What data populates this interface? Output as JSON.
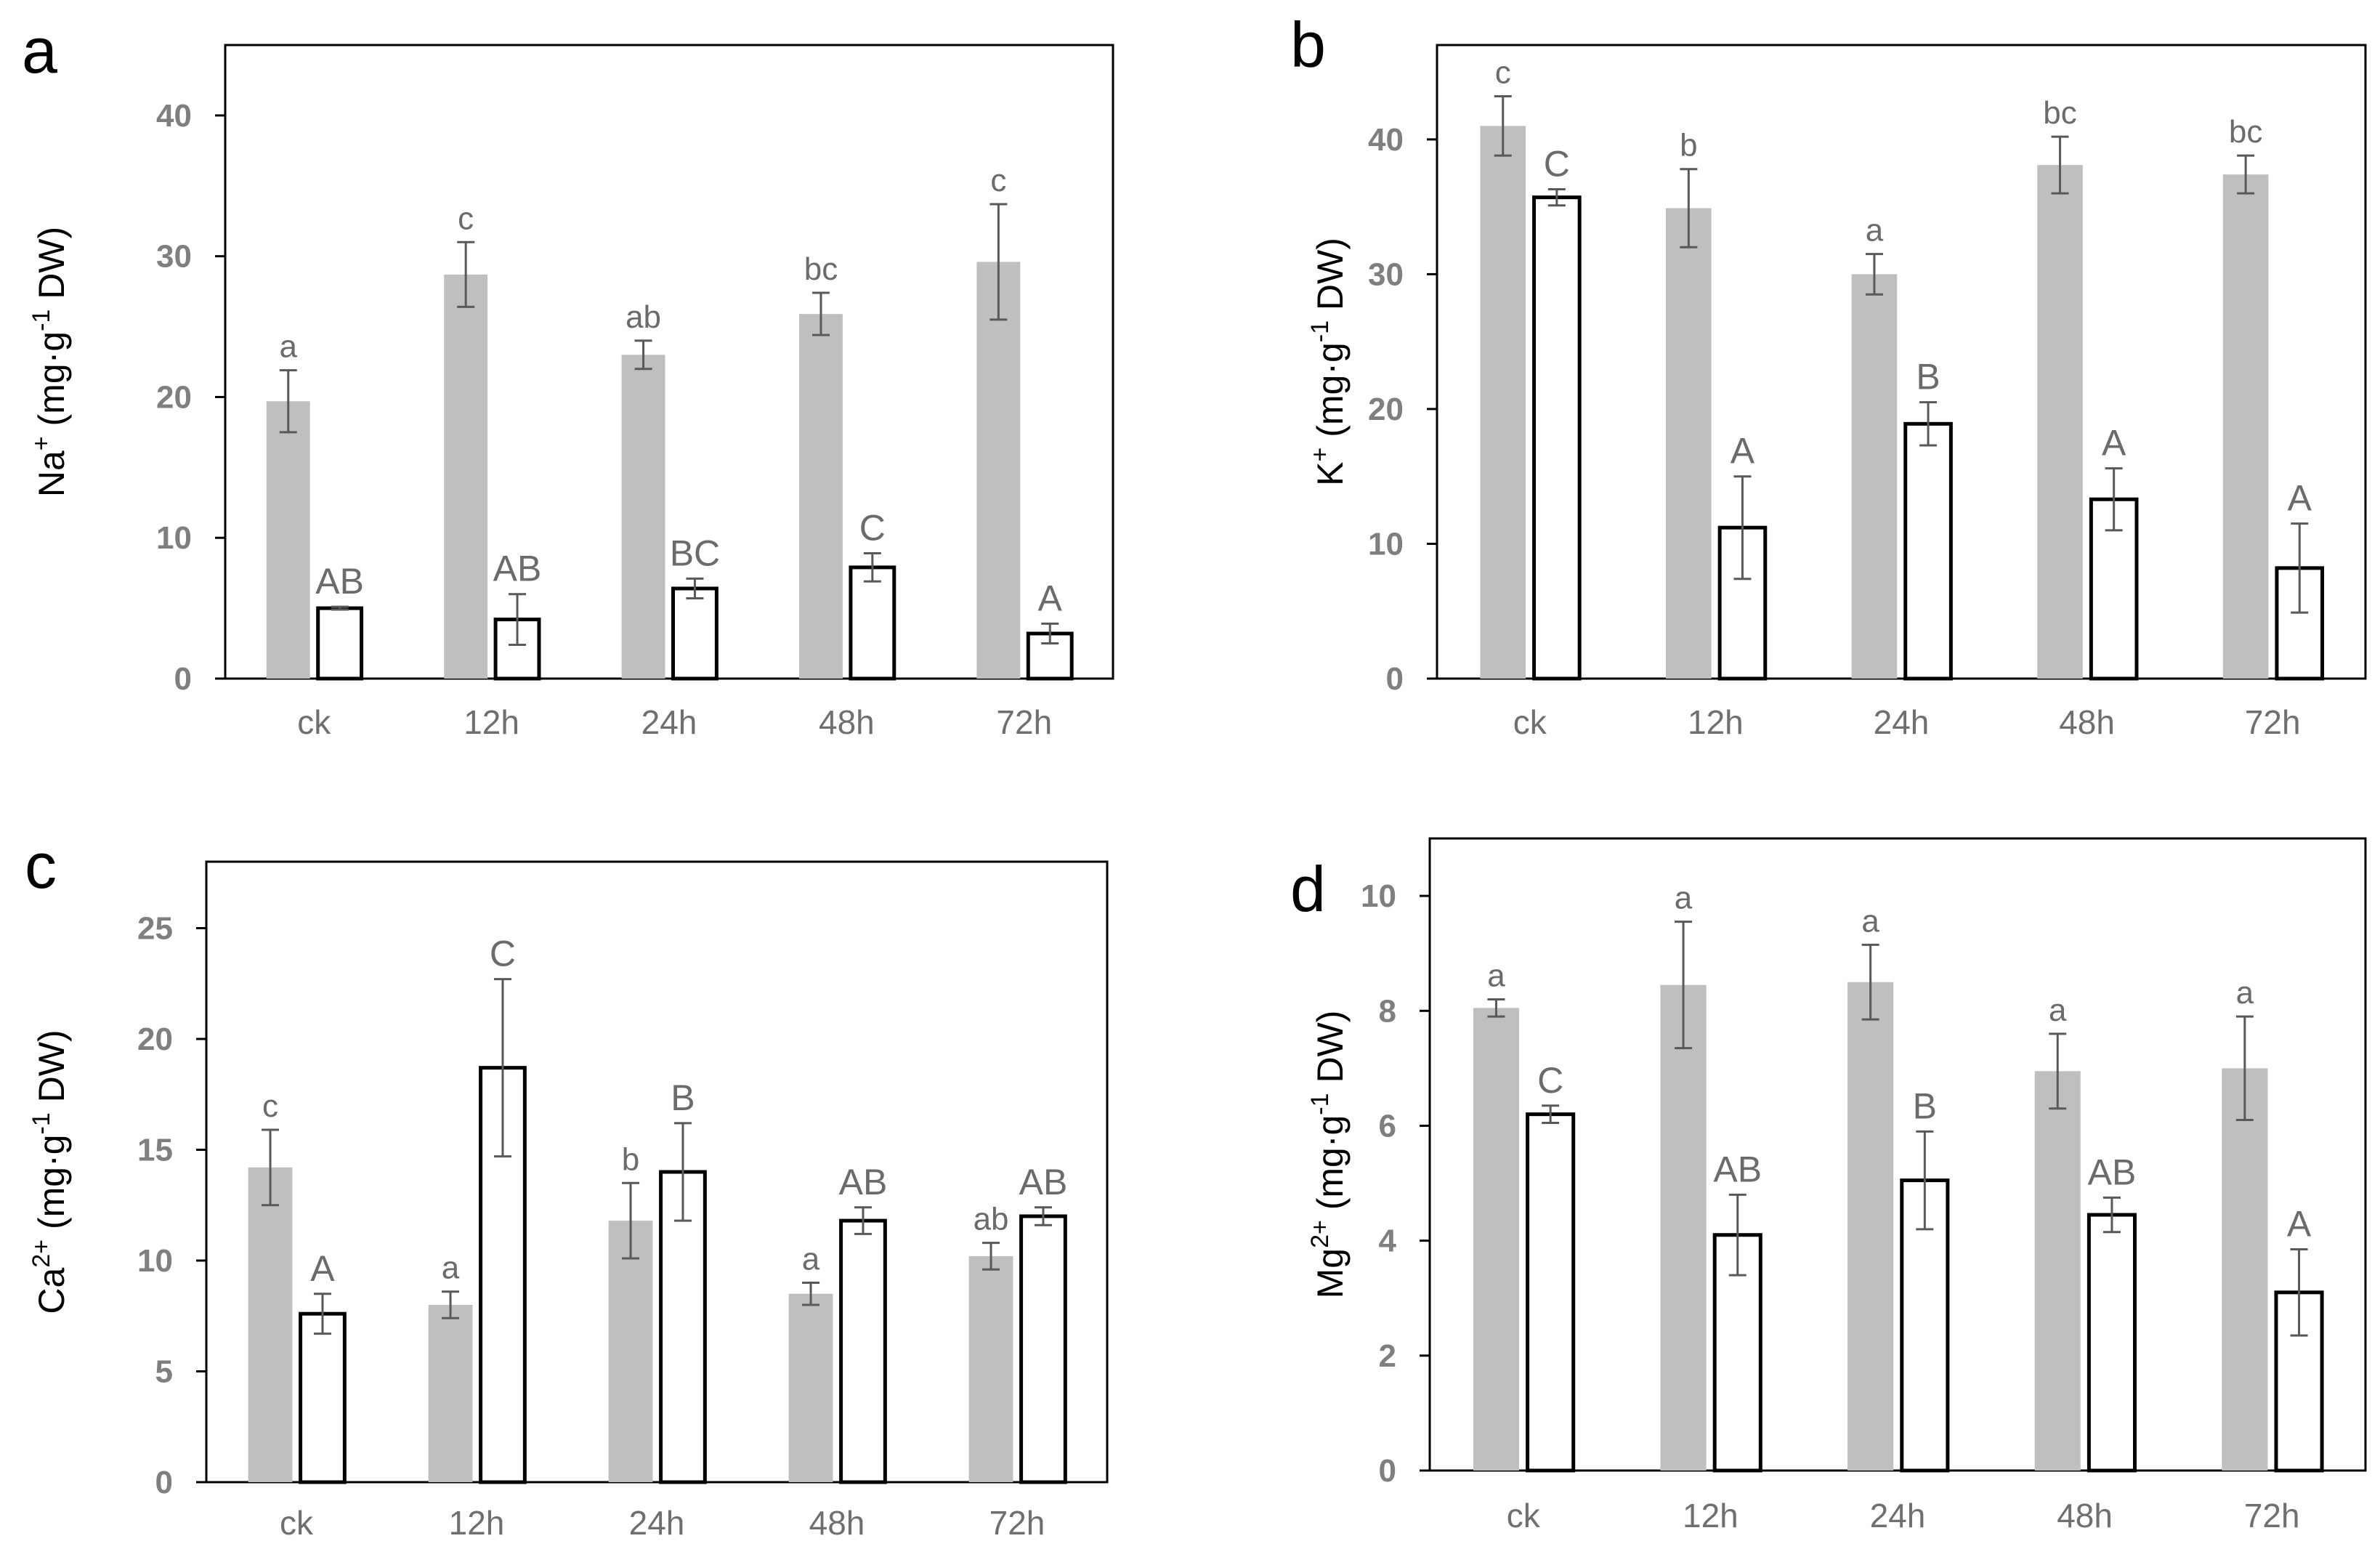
{
  "chart_data": [
    {
      "panel": "a",
      "type": "bar",
      "ylabel_main": "Na",
      "ylabel_sup": "+",
      "ylabel_unit": "(mg·g",
      "ylabel_unit_sup": "-1",
      "ylabel_tail": "DW)",
      "categories": [
        "ck",
        "12h",
        "24h",
        "48h",
        "72h"
      ],
      "ylim": [
        0,
        45
      ],
      "yticks": [
        0,
        10,
        20,
        30,
        40
      ],
      "series": [
        {
          "name": "grey",
          "fill": "#bfbfbf",
          "values": [
            19.7,
            28.7,
            23.0,
            25.9,
            29.6
          ],
          "errors": [
            2.2,
            2.3,
            1.0,
            1.5,
            4.1
          ],
          "labels": [
            "a",
            "c",
            "ab",
            "bc",
            "c"
          ]
        },
        {
          "name": "white",
          "fill": "#ffffff",
          "values": [
            5.0,
            4.2,
            6.4,
            7.9,
            3.2
          ],
          "errors": [
            0.1,
            1.8,
            0.7,
            1.0,
            0.7
          ],
          "labels": [
            "AB",
            "AB",
            "BC",
            "C",
            "A"
          ]
        }
      ]
    },
    {
      "panel": "b",
      "type": "bar",
      "ylabel_main": "K",
      "ylabel_sup": "+",
      "ylabel_unit": "(mg·g",
      "ylabel_unit_sup": "-1",
      "ylabel_tail": "DW)",
      "categories": [
        "ck",
        "12h",
        "24h",
        "48h",
        "72h"
      ],
      "ylim": [
        0,
        47
      ],
      "yticks": [
        0,
        10,
        20,
        30,
        40
      ],
      "series": [
        {
          "name": "grey",
          "fill": "#bfbfbf",
          "values": [
            41.0,
            34.9,
            30.0,
            38.1,
            37.4
          ],
          "errors": [
            2.2,
            2.9,
            1.5,
            2.1,
            1.4
          ],
          "labels": [
            "c",
            "b",
            "a",
            "bc",
            "bc"
          ]
        },
        {
          "name": "white",
          "fill": "#ffffff",
          "values": [
            35.7,
            11.2,
            18.9,
            13.3,
            8.2
          ],
          "errors": [
            0.6,
            3.8,
            1.6,
            2.3,
            3.3
          ],
          "labels": [
            "C",
            "A",
            "B",
            "A",
            "A"
          ]
        }
      ]
    },
    {
      "panel": "c",
      "type": "bar",
      "ylabel_main": "Ca",
      "ylabel_sup": "2+",
      "ylabel_unit": "(mg·g",
      "ylabel_unit_sup": "-1",
      "ylabel_tail": "DW)",
      "categories": [
        "ck",
        "12h",
        "24h",
        "48h",
        "72h"
      ],
      "ylim": [
        0,
        28
      ],
      "yticks": [
        0,
        5,
        10,
        15,
        20,
        25
      ],
      "series": [
        {
          "name": "grey",
          "fill": "#bfbfbf",
          "values": [
            14.2,
            8.0,
            11.8,
            8.5,
            10.2
          ],
          "errors": [
            1.7,
            0.6,
            1.7,
            0.5,
            0.6
          ],
          "labels": [
            "c",
            "a",
            "b",
            "a",
            "ab"
          ]
        },
        {
          "name": "white",
          "fill": "#ffffff",
          "values": [
            7.6,
            18.7,
            14.0,
            11.8,
            12.0
          ],
          "errors": [
            0.9,
            4.0,
            2.2,
            0.6,
            0.4
          ],
          "labels": [
            "A",
            "C",
            "B",
            "AB",
            "AB"
          ]
        }
      ]
    },
    {
      "panel": "d",
      "type": "bar",
      "ylabel_main": "Mg",
      "ylabel_sup": "2+",
      "ylabel_unit": "(mg·g",
      "ylabel_unit_sup": "-1",
      "ylabel_tail": "DW)",
      "categories": [
        "ck",
        "12h",
        "24h",
        "48h",
        "72h"
      ],
      "ylim": [
        0,
        11
      ],
      "yticks": [
        0,
        2,
        4,
        6,
        8,
        10
      ],
      "series": [
        {
          "name": "grey",
          "fill": "#bfbfbf",
          "values": [
            8.05,
            8.45,
            8.5,
            6.95,
            7.0
          ],
          "errors": [
            0.15,
            1.1,
            0.65,
            0.65,
            0.9
          ],
          "labels": [
            "a",
            "a",
            "a",
            "a",
            "a"
          ]
        },
        {
          "name": "white",
          "fill": "#ffffff",
          "values": [
            6.2,
            4.1,
            5.05,
            4.45,
            3.1
          ],
          "errors": [
            0.15,
            0.7,
            0.85,
            0.3,
            0.75
          ],
          "labels": [
            "C",
            "AB",
            "B",
            "AB",
            "A"
          ]
        }
      ]
    }
  ]
}
